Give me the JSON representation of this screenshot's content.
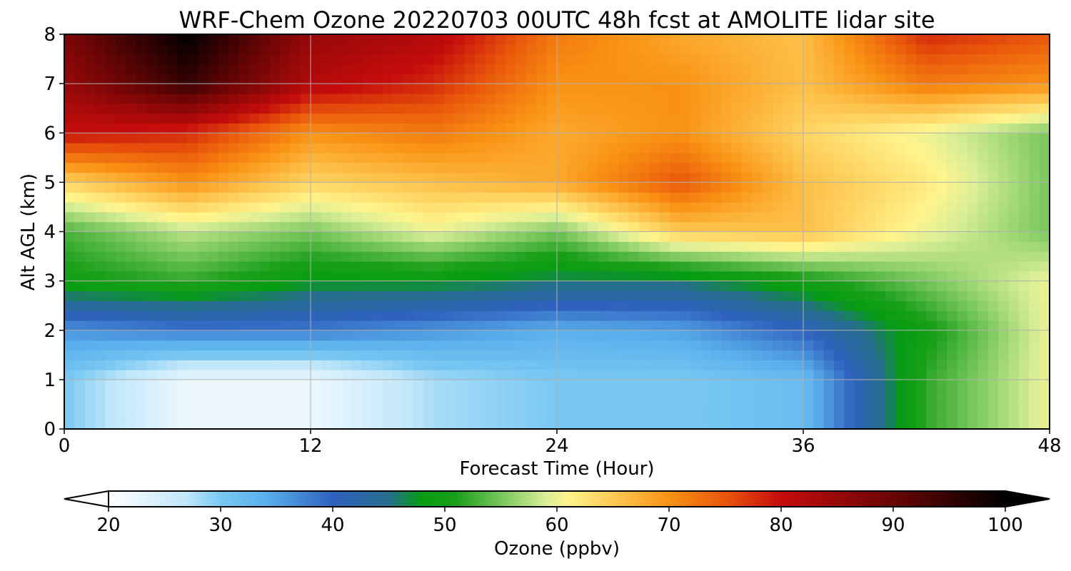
{
  "chart_data": {
    "type": "heatmap",
    "title": "WRF-Chem Ozone  20220703 00UTC 48h fcst at AMOLITE lidar site",
    "xlabel": "Forecast Time (Hour)",
    "ylabel": "Alt AGL (km)",
    "xlim": [
      0,
      48
    ],
    "ylim": [
      0,
      8
    ],
    "x_ticks": [
      0,
      12,
      24,
      36,
      48
    ],
    "y_ticks": [
      0,
      1,
      2,
      3,
      4,
      5,
      6,
      7,
      8
    ],
    "grid": true,
    "colorbar": {
      "label": "Ozone  (ppbv)",
      "min": 20,
      "max": 100,
      "ticks": [
        20,
        30,
        40,
        50,
        60,
        70,
        80,
        90,
        100
      ],
      "extend": "both",
      "under_color": "#ffffff",
      "over_color": "#000000"
    },
    "x": [
      0,
      6,
      12,
      18,
      24,
      30,
      36,
      42,
      48
    ],
    "y": [
      0,
      1,
      2,
      3,
      4,
      5,
      6,
      7,
      8
    ],
    "z_rows_by_altitude": [
      [
        30,
        22,
        22,
        28,
        30,
        30,
        32,
        52,
        60
      ],
      [
        30,
        22,
        22,
        28,
        30,
        30,
        32,
        52,
        60
      ],
      [
        36,
        38,
        38,
        36,
        34,
        35,
        40,
        50,
        60
      ],
      [
        50,
        52,
        48,
        48,
        46,
        46,
        50,
        55,
        60
      ],
      [
        53,
        58,
        55,
        60,
        55,
        65,
        66,
        60,
        55
      ],
      [
        64,
        70,
        64,
        66,
        68,
        75,
        66,
        62,
        55
      ],
      [
        80,
        78,
        70,
        72,
        68,
        70,
        64,
        60,
        55
      ],
      [
        85,
        95,
        82,
        78,
        70,
        70,
        66,
        72,
        70
      ],
      [
        88,
        100,
        85,
        82,
        72,
        68,
        66,
        78,
        75
      ]
    ]
  }
}
